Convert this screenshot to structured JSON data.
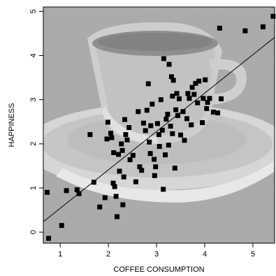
{
  "chart_data": {
    "type": "scatter",
    "title": "",
    "xlabel": "COFFEE CONSUMPTION",
    "ylabel": "HAPPINESS",
    "xlim": [
      0.65,
      5.45
    ],
    "ylim": [
      -0.25,
      5.1
    ],
    "xticks": [
      1,
      2,
      3,
      4,
      5
    ],
    "yticks": [
      0,
      1,
      2,
      3,
      4,
      5
    ],
    "grid": false,
    "background": "coffee cup picture in grayscale behind the points",
    "regression_line": {
      "intercept": -0.33,
      "slope": 0.87
    },
    "points": [
      {
        "x": 0.76,
        "y": -0.14
      },
      {
        "x": 0.73,
        "y": 0.9
      },
      {
        "x": 1.03,
        "y": 0.15
      },
      {
        "x": 1.13,
        "y": 0.94
      },
      {
        "x": 1.35,
        "y": 0.96
      },
      {
        "x": 1.39,
        "y": 0.87
      },
      {
        "x": 1.62,
        "y": 2.21
      },
      {
        "x": 1.7,
        "y": 1.13
      },
      {
        "x": 1.82,
        "y": 0.57
      },
      {
        "x": 1.93,
        "y": 0.78
      },
      {
        "x": 1.99,
        "y": 2.49
      },
      {
        "x": 1.97,
        "y": 2.11
      },
      {
        "x": 2.05,
        "y": 2.24
      },
      {
        "x": 2.07,
        "y": 2.14
      },
      {
        "x": 2.1,
        "y": 1.11
      },
      {
        "x": 2.13,
        "y": 1.03
      },
      {
        "x": 2.11,
        "y": 1.8
      },
      {
        "x": 2.16,
        "y": 0.81
      },
      {
        "x": 2.18,
        "y": 0.35
      },
      {
        "x": 2.21,
        "y": 1.76
      },
      {
        "x": 2.23,
        "y": 1.38
      },
      {
        "x": 2.27,
        "y": 2.0
      },
      {
        "x": 2.29,
        "y": 1.85
      },
      {
        "x": 2.32,
        "y": 1.25
      },
      {
        "x": 2.3,
        "y": 0.62
      },
      {
        "x": 2.34,
        "y": 2.55
      },
      {
        "x": 2.36,
        "y": 2.21
      },
      {
        "x": 2.39,
        "y": 2.09
      },
      {
        "x": 2.43,
        "y": 2.37
      },
      {
        "x": 2.45,
        "y": 1.64
      },
      {
        "x": 2.51,
        "y": 1.74
      },
      {
        "x": 2.57,
        "y": 1.14
      },
      {
        "x": 2.62,
        "y": 2.73
      },
      {
        "x": 2.65,
        "y": 1.48
      },
      {
        "x": 2.69,
        "y": 1.4
      },
      {
        "x": 2.73,
        "y": 2.47
      },
      {
        "x": 2.77,
        "y": 2.3
      },
      {
        "x": 2.8,
        "y": 2.76
      },
      {
        "x": 2.83,
        "y": 3.36
      },
      {
        "x": 2.85,
        "y": 2.04
      },
      {
        "x": 2.87,
        "y": 1.78
      },
      {
        "x": 2.88,
        "y": 2.41
      },
      {
        "x": 2.91,
        "y": 2.9
      },
      {
        "x": 2.95,
        "y": 1.65
      },
      {
        "x": 2.96,
        "y": 1.28
      },
      {
        "x": 2.98,
        "y": 1.48
      },
      {
        "x": 3.02,
        "y": 2.46
      },
      {
        "x": 3.05,
        "y": 2.21
      },
      {
        "x": 3.06,
        "y": 1.94
      },
      {
        "x": 3.09,
        "y": 3.0
      },
      {
        "x": 3.12,
        "y": 2.31
      },
      {
        "x": 3.14,
        "y": 0.97
      },
      {
        "x": 3.15,
        "y": 3.93
      },
      {
        "x": 3.18,
        "y": 1.75
      },
      {
        "x": 3.2,
        "y": 2.56
      },
      {
        "x": 3.23,
        "y": 2.67
      },
      {
        "x": 3.25,
        "y": 1.97
      },
      {
        "x": 3.26,
        "y": 3.8
      },
      {
        "x": 3.29,
        "y": 2.4
      },
      {
        "x": 3.31,
        "y": 3.52
      },
      {
        "x": 3.33,
        "y": 2.23
      },
      {
        "x": 3.33,
        "y": 3.08
      },
      {
        "x": 3.35,
        "y": 3.44
      },
      {
        "x": 3.38,
        "y": 1.45
      },
      {
        "x": 3.4,
        "y": 2.77
      },
      {
        "x": 3.42,
        "y": 3.14
      },
      {
        "x": 3.44,
        "y": 2.64
      },
      {
        "x": 3.47,
        "y": 3.02
      },
      {
        "x": 3.5,
        "y": 2.2
      },
      {
        "x": 3.55,
        "y": 2.73
      },
      {
        "x": 3.58,
        "y": 2.08
      },
      {
        "x": 3.63,
        "y": 2.57
      },
      {
        "x": 3.65,
        "y": 3.14
      },
      {
        "x": 3.68,
        "y": 3.03
      },
      {
        "x": 3.72,
        "y": 2.43
      },
      {
        "x": 3.74,
        "y": 3.28
      },
      {
        "x": 3.78,
        "y": 3.12
      },
      {
        "x": 3.81,
        "y": 3.37
      },
      {
        "x": 3.85,
        "y": 2.93
      },
      {
        "x": 3.88,
        "y": 3.42
      },
      {
        "x": 3.95,
        "y": 2.48
      },
      {
        "x": 3.97,
        "y": 3.03
      },
      {
        "x": 4.01,
        "y": 3.45
      },
      {
        "x": 4.04,
        "y": 2.8
      },
      {
        "x": 4.06,
        "y": 2.94
      },
      {
        "x": 4.1,
        "y": 3.03
      },
      {
        "x": 4.18,
        "y": 2.72
      },
      {
        "x": 4.27,
        "y": 2.7
      },
      {
        "x": 4.31,
        "y": 4.62
      },
      {
        "x": 4.34,
        "y": 3.02
      },
      {
        "x": 4.84,
        "y": 4.56
      },
      {
        "x": 5.21,
        "y": 4.65
      },
      {
        "x": 5.42,
        "y": 4.89
      }
    ]
  }
}
